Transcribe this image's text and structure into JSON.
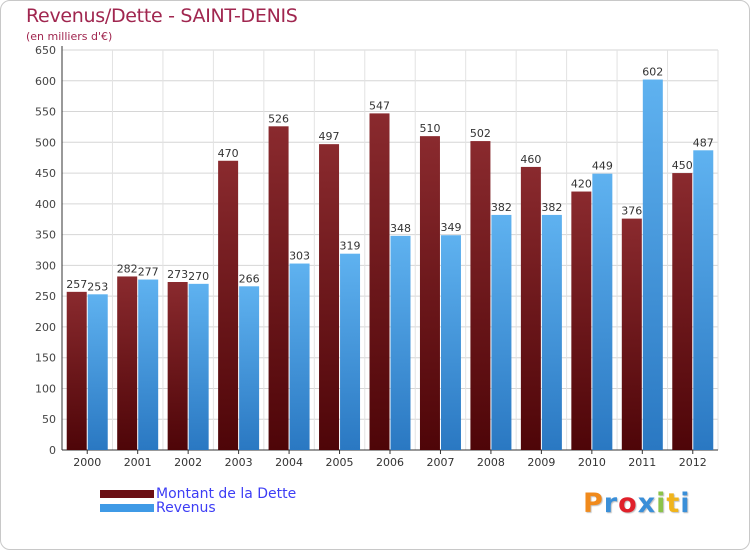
{
  "title": "Revenus/Dette - SAINT-DENIS",
  "subtitle": "(en milliers d'€)",
  "logo": {
    "letters": [
      "P",
      "r",
      "o",
      "x",
      "i",
      "t",
      "i"
    ],
    "colors": [
      "#f08a1c",
      "#3a8fd8",
      "#e0202a",
      "#3a8fd8",
      "#8bc34a",
      "#f0b41c",
      "#3a8fd8"
    ]
  },
  "colors": {
    "dette": "#6b0f14",
    "revenus": "#3f9ae6",
    "title": "#a0264f",
    "legend_text": "#3d3df5"
  },
  "chart_data": {
    "type": "bar",
    "title": "Revenus/Dette - SAINT-DENIS",
    "subtitle": "(en milliers d'€)",
    "categories": [
      "2000",
      "2001",
      "2002",
      "2003",
      "2004",
      "2005",
      "2006",
      "2007",
      "2008",
      "2009",
      "2010",
      "2011",
      "2012"
    ],
    "series": [
      {
        "name": "Montant de la Dette",
        "values": [
          257,
          282,
          273,
          470,
          526,
          497,
          547,
          510,
          502,
          460,
          420,
          376,
          450
        ]
      },
      {
        "name": "Revenus",
        "values": [
          253,
          277,
          270,
          266,
          303,
          319,
          348,
          349,
          382,
          382,
          449,
          602,
          487
        ]
      }
    ],
    "ylim": [
      0,
      650
    ],
    "yticks": [
      0,
      50,
      100,
      150,
      200,
      250,
      300,
      350,
      400,
      450,
      500,
      550,
      600,
      650
    ],
    "grid": true,
    "legend_position": "bottom-left"
  }
}
